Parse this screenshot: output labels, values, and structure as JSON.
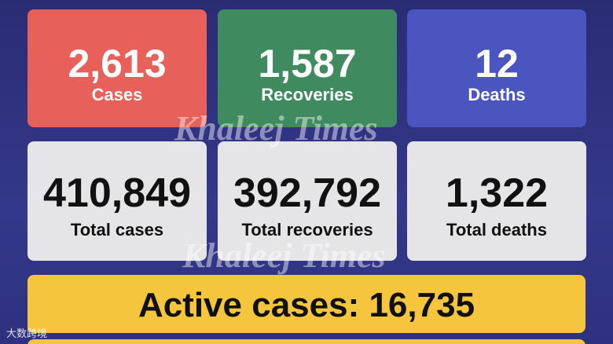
{
  "cards": [
    {
      "value": "2,613",
      "label": "Cases"
    },
    {
      "value": "1,587",
      "label": "Recoveries"
    },
    {
      "value": "12",
      "label": "Deaths"
    },
    {
      "value": "410,849",
      "label": "Total cases"
    },
    {
      "value": "392,792",
      "label": "Total recoveries"
    },
    {
      "value": "1,322",
      "label": "Total deaths"
    }
  ],
  "active": "Active cases: 16,735",
  "watermark": "Khaleej Times",
  "logo": "大数跨境"
}
